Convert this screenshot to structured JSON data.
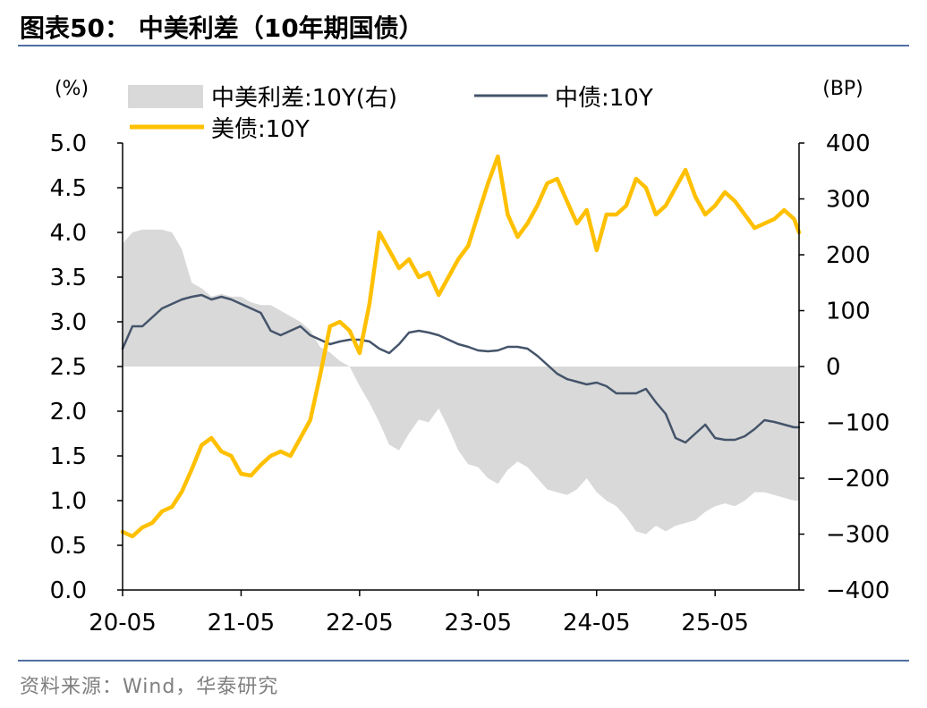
{
  "title": "图表50：  中美利差（10年期国债）",
  "source": "资料来源：Wind，华泰研究",
  "colors": {
    "spread": "#d9d9d9",
    "cn_bond": "#44546a",
    "us_bond": "#ffc000",
    "rule": "#4f6fa3"
  },
  "chart_data": {
    "type": "line",
    "left_axis": {
      "unit_label": "(%)",
      "min": 0.0,
      "max": 5.0,
      "ticks": [
        "0.0",
        "0.5",
        "1.0",
        "1.5",
        "2.0",
        "2.5",
        "3.0",
        "3.5",
        "4.0",
        "4.5",
        "5.0"
      ]
    },
    "right_axis": {
      "unit_label": "(BP)",
      "min": -400,
      "max": 400,
      "ticks": [
        "−400",
        "−300",
        "−200",
        "−100",
        "0",
        "100",
        "200",
        "300",
        "400"
      ]
    },
    "x_axis": {
      "tick_labels": [
        "20-05",
        "21-05",
        "22-05",
        "23-05",
        "24-05",
        "25-05"
      ],
      "tick_positions": [
        0,
        12,
        24,
        36,
        48,
        60
      ],
      "range": [
        0,
        68.5
      ]
    },
    "legend": [
      {
        "name": "中美利差:10Y(右)",
        "type": "area",
        "color": "#d9d9d9"
      },
      {
        "name": "中债:10Y",
        "type": "line",
        "color": "#44546a"
      },
      {
        "name": "美债:10Y",
        "type": "line",
        "color": "#ffc000"
      }
    ],
    "series": [
      {
        "name": "中债:10Y",
        "axis": "left",
        "x": [
          0,
          1,
          2,
          3,
          4,
          5,
          6,
          7,
          8,
          9,
          10,
          11,
          12,
          13,
          14,
          15,
          16,
          17,
          18,
          19,
          20,
          21,
          22,
          23,
          24,
          25,
          26,
          27,
          28,
          29,
          30,
          31,
          32,
          33,
          34,
          35,
          36,
          37,
          38,
          39,
          40,
          41,
          42,
          43,
          44,
          45,
          46,
          47,
          48,
          49,
          50,
          51,
          52,
          53,
          54,
          55,
          56,
          57,
          58,
          59,
          60,
          61,
          62,
          63,
          64,
          65,
          66,
          67,
          68,
          68.5
        ],
        "values": [
          2.7,
          2.95,
          2.95,
          3.05,
          3.15,
          3.2,
          3.25,
          3.28,
          3.3,
          3.25,
          3.28,
          3.25,
          3.2,
          3.15,
          3.1,
          2.9,
          2.85,
          2.9,
          2.95,
          2.85,
          2.8,
          2.75,
          2.78,
          2.8,
          2.8,
          2.78,
          2.7,
          2.65,
          2.75,
          2.88,
          2.9,
          2.88,
          2.85,
          2.8,
          2.75,
          2.72,
          2.68,
          2.67,
          2.68,
          2.72,
          2.72,
          2.7,
          2.62,
          2.52,
          2.42,
          2.36,
          2.33,
          2.3,
          2.32,
          2.28,
          2.2,
          2.2,
          2.2,
          2.25,
          2.1,
          1.97,
          1.7,
          1.65,
          1.75,
          1.85,
          1.7,
          1.68,
          1.68,
          1.72,
          1.8,
          1.9,
          1.88,
          1.85,
          1.82,
          1.82
        ]
      },
      {
        "name": "美债:10Y",
        "axis": "left",
        "x": [
          0,
          1,
          2,
          3,
          4,
          5,
          6,
          7,
          8,
          9,
          10,
          11,
          12,
          13,
          14,
          15,
          16,
          17,
          18,
          19,
          20,
          21,
          22,
          23,
          24,
          25,
          26,
          27,
          28,
          29,
          30,
          31,
          32,
          33,
          34,
          35,
          36,
          37,
          38,
          39,
          40,
          41,
          42,
          43,
          44,
          45,
          46,
          47,
          48,
          49,
          50,
          51,
          52,
          53,
          54,
          55,
          56,
          57,
          58,
          59,
          60,
          61,
          62,
          63,
          64,
          65,
          66,
          67,
          68,
          68.5
        ],
        "values": [
          0.65,
          0.6,
          0.7,
          0.75,
          0.88,
          0.93,
          1.1,
          1.35,
          1.62,
          1.7,
          1.55,
          1.5,
          1.3,
          1.28,
          1.4,
          1.5,
          1.55,
          1.5,
          1.7,
          1.9,
          2.4,
          2.95,
          3.0,
          2.9,
          2.65,
          3.2,
          4.0,
          3.8,
          3.6,
          3.7,
          3.5,
          3.55,
          3.3,
          3.5,
          3.7,
          3.85,
          4.2,
          4.55,
          4.85,
          4.2,
          3.95,
          4.1,
          4.3,
          4.55,
          4.6,
          4.35,
          4.1,
          4.25,
          3.8,
          4.2,
          4.2,
          4.3,
          4.6,
          4.5,
          4.2,
          4.3,
          4.5,
          4.7,
          4.4,
          4.2,
          4.3,
          4.45,
          4.35,
          4.2,
          4.05,
          4.1,
          4.15,
          4.25,
          4.15,
          4.0
        ]
      },
      {
        "name": "中美利差:10Y(右)",
        "axis": "right",
        "type": "area",
        "x": [
          0,
          1,
          2,
          3,
          4,
          5,
          6,
          7,
          8,
          9,
          10,
          11,
          12,
          13,
          14,
          15,
          16,
          17,
          18,
          19,
          20,
          21,
          22,
          23,
          24,
          25,
          26,
          27,
          28,
          29,
          30,
          31,
          32,
          33,
          34,
          35,
          36,
          37,
          38,
          39,
          40,
          41,
          42,
          43,
          44,
          45,
          46,
          47,
          48,
          49,
          50,
          51,
          52,
          53,
          54,
          55,
          56,
          57,
          58,
          59,
          60,
          61,
          62,
          63,
          64,
          65,
          66,
          67,
          68,
          68.5
        ],
        "values": [
          220,
          240,
          245,
          245,
          245,
          240,
          210,
          150,
          140,
          125,
          130,
          125,
          125,
          115,
          110,
          110,
          100,
          90,
          80,
          65,
          35,
          25,
          10,
          0,
          -35,
          -65,
          -100,
          -140,
          -150,
          -120,
          -95,
          -100,
          -75,
          -110,
          -150,
          -175,
          -180,
          -200,
          -210,
          -185,
          -170,
          -180,
          -200,
          -220,
          -225,
          -230,
          -220,
          -200,
          -225,
          -240,
          -250,
          -270,
          -295,
          -300,
          -285,
          -295,
          -285,
          -280,
          -275,
          -260,
          -250,
          -245,
          -250,
          -240,
          -225,
          -225,
          -230,
          -235,
          -240,
          -240
        ]
      }
    ]
  }
}
